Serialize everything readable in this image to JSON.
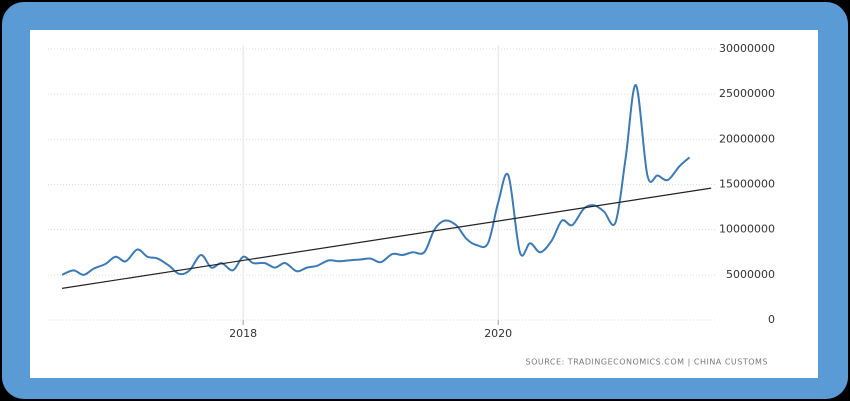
{
  "chart_data": {
    "type": "line",
    "x": [
      2016.58,
      2016.67,
      2016.75,
      2016.83,
      2016.92,
      2017.0,
      2017.08,
      2017.17,
      2017.25,
      2017.33,
      2017.42,
      2017.5,
      2017.58,
      2017.67,
      2017.75,
      2017.83,
      2017.92,
      2018.0,
      2018.08,
      2018.17,
      2018.25,
      2018.33,
      2018.42,
      2018.5,
      2018.58,
      2018.67,
      2018.75,
      2018.83,
      2018.92,
      2019.0,
      2019.08,
      2019.17,
      2019.25,
      2019.33,
      2019.42,
      2019.5,
      2019.58,
      2019.67,
      2019.75,
      2019.83,
      2019.92,
      2020.0,
      2020.08,
      2020.17,
      2020.25,
      2020.33,
      2020.42,
      2020.5,
      2020.58,
      2020.67,
      2020.75,
      2020.83,
      2020.92,
      2021.0,
      2021.08,
      2021.17,
      2021.25,
      2021.33,
      2021.42,
      2021.5
    ],
    "series": [
      {
        "color": "#3d7ab5",
        "values": [
          5000000,
          5500000,
          5000000,
          5700000,
          6200000,
          7000000,
          6500000,
          7800000,
          7000000,
          6800000,
          6000000,
          5100000,
          5500000,
          7200000,
          5800000,
          6300000,
          5500000,
          7000000,
          6300000,
          6300000,
          5800000,
          6300000,
          5400000,
          5800000,
          6000000,
          6600000,
          6500000,
          6600000,
          6700000,
          6800000,
          6400000,
          7300000,
          7200000,
          7500000,
          7500000,
          10000000,
          11000000,
          10500000,
          9000000,
          8300000,
          8500000,
          13000000,
          16000000,
          7500000,
          8500000,
          7500000,
          8800000,
          11000000,
          10500000,
          12300000,
          12700000,
          12000000,
          10800000,
          18000000,
          26000000,
          16000000,
          16000000,
          15500000,
          17000000,
          18000000
        ]
      },
      {
        "color": "#222222",
        "x": [
          2016.58,
          2021.67
        ],
        "values": [
          3500000,
          14600000
        ]
      }
    ],
    "xlim": [
      2016.47,
      2021.7
    ],
    "xticks": [
      2018,
      2020
    ],
    "ylim": [
      0,
      30000000
    ],
    "yticks": [
      0,
      5000000,
      10000000,
      15000000,
      20000000,
      25000000,
      30000000
    ],
    "grid": true,
    "source": "SOURCE: TRADINGECONOMICS.COM  |  CHINA CUSTOMS"
  }
}
